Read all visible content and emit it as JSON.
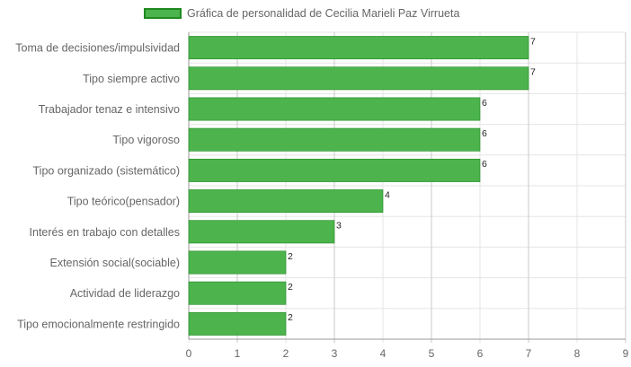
{
  "chart_data": {
    "type": "bar",
    "orientation": "horizontal",
    "title": "",
    "xlabel": "",
    "ylabel": "",
    "legend_position": "top",
    "grid": true,
    "xlim": [
      0,
      9
    ],
    "xticks": [
      "0",
      "1",
      "2",
      "3",
      "4",
      "5",
      "6",
      "7",
      "8",
      "9"
    ],
    "categories": [
      "Toma de decisiones/impulsividad",
      "Tipo siempre activo",
      "Trabajador tenaz e intensivo",
      "Tipo vigoroso",
      "Tipo organizado (sistemático)",
      "Tipo teórico(pensador)",
      "Interés en trabajo con detalles",
      "Extensión social(sociable)",
      "Actividad de liderazgo",
      "Tipo emocionalmente restringido"
    ],
    "series": [
      {
        "name": "Gráfica de personalidad de Cecilia Marieli Paz Virrueta",
        "values": [
          7,
          7,
          6,
          6,
          6,
          4,
          3,
          2,
          2,
          2
        ]
      }
    ],
    "colors": {
      "bar_fill": "#4db34d",
      "bar_border": "#1f8a1f",
      "grid": "#e5e5e5",
      "grid_odd": "#c8c8c8"
    }
  }
}
